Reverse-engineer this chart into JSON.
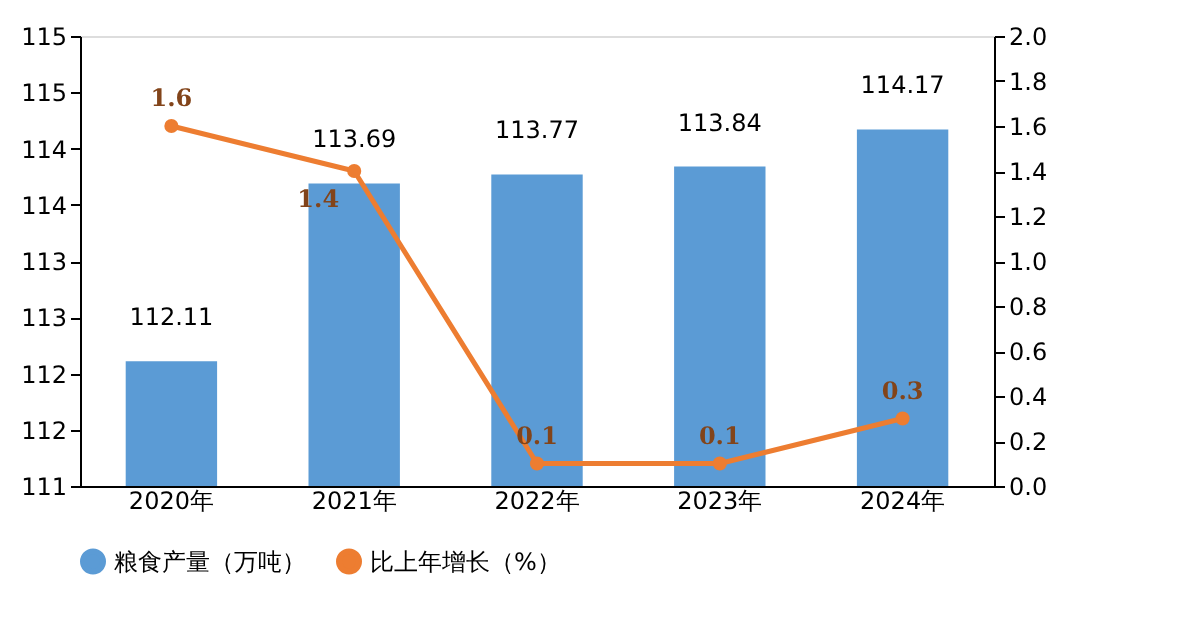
{
  "chart_data": {
    "type": "bar",
    "categories": [
      "2020年",
      "2021年",
      "2022年",
      "2023年",
      "2024年"
    ],
    "series": [
      {
        "name": "粮食产量（万吨）",
        "color": "#5b9bd5",
        "values": [
          112.11,
          113.69,
          113.77,
          113.84,
          114.17
        ]
      },
      {
        "name": "比上年增长（%）",
        "type": "line",
        "axis": "y2",
        "color": "#ed7d31",
        "marker": "circle",
        "values": [
          1.6,
          1.4,
          0.1,
          0.1,
          0.3
        ]
      }
    ],
    "ylim": [
      111,
      115
    ],
    "yticks": [
      111,
      {
        "value": 111.5,
        "label": "112"
      },
      112,
      {
        "value": 112.5,
        "label": "113"
      },
      113,
      {
        "value": 113.5,
        "label": "114"
      },
      114,
      {
        "value": 114.5,
        "label": "115"
      },
      115
    ],
    "y2lim": [
      0,
      2.0
    ],
    "y2ticks": [
      {
        "value": 0,
        "label": "0.0"
      },
      0.2,
      0.4,
      0.6,
      0.8,
      {
        "value": 1,
        "label": "1.0"
      },
      1.2,
      1.4,
      1.6,
      1.8,
      {
        "value": 2,
        "label": "2.0"
      }
    ],
    "data_labels": true,
    "grid": false,
    "legend": "bottom"
  }
}
